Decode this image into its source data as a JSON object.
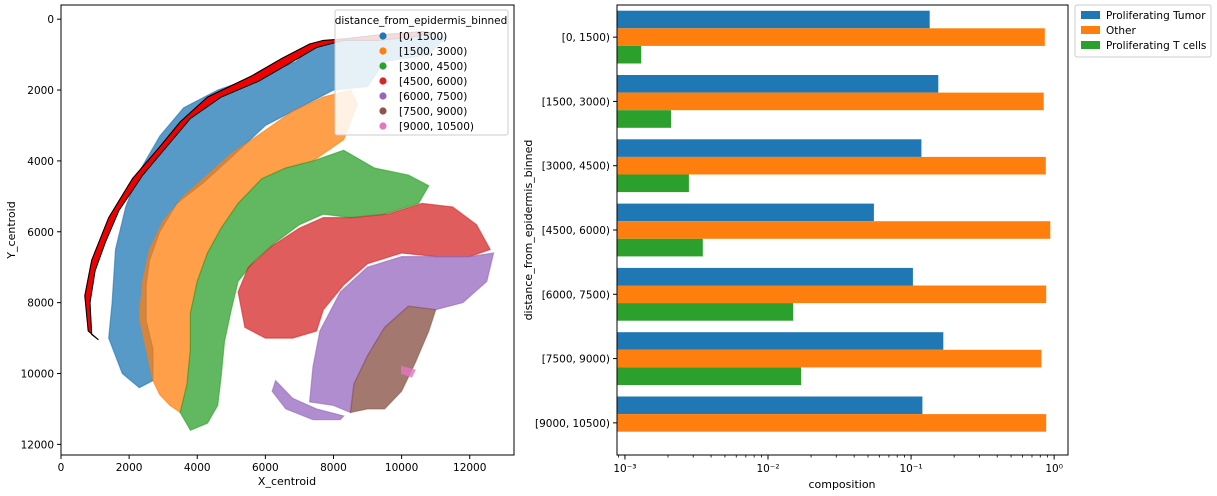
{
  "chart_data": [
    {
      "type": "scatter",
      "xlabel": "X_centroid",
      "ylabel": "Y_centroid",
      "xlim": [
        0,
        13300
      ],
      "ylim": [
        12300,
        -400
      ],
      "y_inverted": true,
      "x_ticks": [
        0,
        2000,
        4000,
        6000,
        8000,
        10000,
        12000
      ],
      "y_ticks": [
        0,
        2000,
        4000,
        6000,
        8000,
        10000,
        12000
      ],
      "legend": {
        "title": "distance_from_epidermis_binned",
        "placement": "top-right",
        "entries": [
          {
            "label": "[0, 1500)",
            "color": "#1f77b4"
          },
          {
            "label": "[1500, 3000)",
            "color": "#ff7f0e"
          },
          {
            "label": "[3000, 4500)",
            "color": "#2ca02c"
          },
          {
            "label": "[4500, 6000)",
            "color": "#d62728"
          },
          {
            "label": "[6000, 7500)",
            "color": "#9467bd"
          },
          {
            "label": "[7500, 9000)",
            "color": "#8c564b"
          },
          {
            "label": "[9000, 10500)",
            "color": "#e377c2"
          }
        ]
      },
      "regions": [
        {
          "bin": "[0, 1500)",
          "color": "#1f77b4",
          "alpha": 0.75,
          "outline": [
            [
              1400,
              9000
            ],
            [
              1500,
              8000
            ],
            [
              1600,
              6500
            ],
            [
              1900,
              5300
            ],
            [
              2300,
              4300
            ],
            [
              2900,
              3300
            ],
            [
              3600,
              2500
            ],
            [
              4600,
              2000
            ],
            [
              5800,
              1600
            ],
            [
              6900,
              1200
            ],
            [
              7400,
              750
            ],
            [
              8300,
              550
            ],
            [
              9300,
              450
            ],
            [
              10300,
              500
            ],
            [
              11300,
              500
            ],
            [
              10800,
              1000
            ],
            [
              9500,
              1200
            ],
            [
              9000,
              1900
            ],
            [
              8000,
              2000
            ],
            [
              7000,
              2500
            ],
            [
              6000,
              3000
            ],
            [
              5000,
              3900
            ],
            [
              4200,
              4600
            ],
            [
              3400,
              5200
            ],
            [
              2900,
              6000
            ],
            [
              2600,
              6800
            ],
            [
              2500,
              7500
            ],
            [
              2500,
              8500
            ],
            [
              2700,
              9300
            ],
            [
              2700,
              10200
            ],
            [
              2300,
              10400
            ],
            [
              1800,
              10000
            ]
          ]
        },
        {
          "bin": "[1500, 3000)",
          "color": "#ff7f0e",
          "alpha": 0.75,
          "outline": [
            [
              2700,
              10200
            ],
            [
              2500,
              9300
            ],
            [
              2300,
              8400
            ],
            [
              2400,
              7400
            ],
            [
              2600,
              6500
            ],
            [
              3000,
              5700
            ],
            [
              3600,
              5000
            ],
            [
              4300,
              4400
            ],
            [
              5000,
              3800
            ],
            [
              5900,
              3200
            ],
            [
              6800,
              2600
            ],
            [
              7700,
              2200
            ],
            [
              8500,
              2000
            ],
            [
              8700,
              2400
            ],
            [
              8300,
              3400
            ],
            [
              7400,
              4000
            ],
            [
              6600,
              4200
            ],
            [
              5900,
              4500
            ],
            [
              5200,
              5200
            ],
            [
              4700,
              5900
            ],
            [
              4300,
              6600
            ],
            [
              4000,
              7400
            ],
            [
              3800,
              8300
            ],
            [
              3800,
              9300
            ],
            [
              3700,
              10300
            ],
            [
              3500,
              11100
            ],
            [
              3200,
              10900
            ],
            [
              2900,
              10600
            ]
          ]
        },
        {
          "bin": "[3000, 4500)",
          "color": "#2ca02c",
          "alpha": 0.75,
          "outline": [
            [
              3800,
              11600
            ],
            [
              3500,
              11100
            ],
            [
              3700,
              10300
            ],
            [
              3800,
              9300
            ],
            [
              3800,
              8300
            ],
            [
              4000,
              7400
            ],
            [
              4300,
              6600
            ],
            [
              4700,
              5900
            ],
            [
              5200,
              5200
            ],
            [
              5900,
              4500
            ],
            [
              6600,
              4200
            ],
            [
              7400,
              4000
            ],
            [
              8300,
              3700
            ],
            [
              9200,
              4200
            ],
            [
              10200,
              4400
            ],
            [
              10800,
              4700
            ],
            [
              10500,
              5200
            ],
            [
              9500,
              5500
            ],
            [
              8500,
              5600
            ],
            [
              7700,
              5500
            ],
            [
              7000,
              5800
            ],
            [
              6300,
              6300
            ],
            [
              5700,
              6800
            ],
            [
              5200,
              7400
            ],
            [
              5000,
              8200
            ],
            [
              4800,
              9100
            ],
            [
              4700,
              10100
            ],
            [
              4600,
              10900
            ],
            [
              4300,
              11400
            ]
          ]
        },
        {
          "bin": "[4500, 6000)",
          "color": "#d62728",
          "alpha": 0.75,
          "outline": [
            [
              5400,
              8700
            ],
            [
              5200,
              7700
            ],
            [
              5500,
              7000
            ],
            [
              6200,
              6400
            ],
            [
              7000,
              5900
            ],
            [
              7700,
              5600
            ],
            [
              8600,
              5600
            ],
            [
              9600,
              5500
            ],
            [
              10600,
              5200
            ],
            [
              11500,
              5300
            ],
            [
              12200,
              5800
            ],
            [
              12600,
              6500
            ],
            [
              12000,
              6700
            ],
            [
              11000,
              6700
            ],
            [
              10000,
              6600
            ],
            [
              9000,
              6900
            ],
            [
              8300,
              7500
            ],
            [
              7700,
              8200
            ],
            [
              7500,
              8800
            ],
            [
              6800,
              9000
            ],
            [
              6000,
              9000
            ]
          ]
        },
        {
          "bin": "[6000, 7500)",
          "color": "#9467bd",
          "alpha": 0.75,
          "outline": [
            [
              7300,
              10800
            ],
            [
              7400,
              9800
            ],
            [
              7600,
              8800
            ],
            [
              8200,
              7700
            ],
            [
              9000,
              7000
            ],
            [
              10000,
              6700
            ],
            [
              11000,
              6700
            ],
            [
              12000,
              6700
            ],
            [
              12700,
              6600
            ],
            [
              12500,
              7400
            ],
            [
              11800,
              8000
            ],
            [
              11000,
              8200
            ],
            [
              10200,
              8100
            ],
            [
              9500,
              8700
            ],
            [
              9000,
              9500
            ],
            [
              8600,
              10300
            ],
            [
              8500,
              11100
            ],
            [
              8000,
              10900
            ]
          ]
        },
        {
          "bin": "[6000, 7500)",
          "color": "#9467bd",
          "alpha": 0.75,
          "outline": [
            [
              6300,
              10200
            ],
            [
              6800,
              10700
            ],
            [
              7500,
              11000
            ],
            [
              8300,
              11200
            ],
            [
              8200,
              11300
            ],
            [
              7400,
              11300
            ],
            [
              6600,
              11000
            ],
            [
              6200,
              10500
            ]
          ]
        },
        {
          "bin": "[7500, 9000)",
          "color": "#8c564b",
          "alpha": 0.8,
          "outline": [
            [
              8500,
              11100
            ],
            [
              8600,
              10300
            ],
            [
              9000,
              9500
            ],
            [
              9500,
              8700
            ],
            [
              10200,
              8100
            ],
            [
              11000,
              8200
            ],
            [
              10800,
              8800
            ],
            [
              10400,
              9700
            ],
            [
              10000,
              10500
            ],
            [
              9500,
              11000
            ],
            [
              9000,
              11000
            ]
          ]
        },
        {
          "bin": "[9000, 10500)",
          "color": "#e377c2",
          "alpha": 0.8,
          "outline": [
            [
              10000,
              9800
            ],
            [
              10400,
              9900
            ],
            [
              10300,
              10100
            ],
            [
              10000,
              10000
            ]
          ]
        }
      ],
      "epidermis_outline": [
        [
          1100,
          9050
        ],
        [
          800,
          8800
        ],
        [
          700,
          7800
        ],
        [
          900,
          6800
        ],
        [
          1400,
          5600
        ],
        [
          2100,
          4500
        ],
        [
          2900,
          3600
        ],
        [
          3500,
          2900
        ],
        [
          4300,
          2200
        ],
        [
          5600,
          1600
        ],
        [
          6500,
          1100
        ],
        [
          7300,
          700
        ],
        [
          7700,
          600
        ],
        [
          8400,
          550
        ],
        [
          9300,
          450
        ],
        [
          10000,
          400
        ],
        [
          10600,
          350
        ],
        [
          11000,
          400
        ],
        [
          10300,
          500
        ],
        [
          9300,
          600
        ],
        [
          8300,
          600
        ],
        [
          7500,
          800
        ],
        [
          6700,
          1250
        ],
        [
          5800,
          1750
        ],
        [
          4700,
          2200
        ],
        [
          3800,
          2800
        ],
        [
          3100,
          3600
        ],
        [
          2400,
          4400
        ],
        [
          1700,
          5400
        ],
        [
          1300,
          6300
        ],
        [
          1000,
          7100
        ],
        [
          850,
          8000
        ],
        [
          900,
          8900
        ]
      ]
    },
    {
      "type": "bar",
      "orientation": "horizontal",
      "xlabel": "composition",
      "ylabel": "distance_from_epidermis_binned",
      "xscale": "log",
      "xlim": [
        0.00088,
        1.25
      ],
      "x_ticks": [
        {
          "value": 0.001,
          "label": "10⁻³"
        },
        {
          "value": 0.01,
          "label": "10⁻²"
        },
        {
          "value": 0.1,
          "label": "10⁻¹"
        },
        {
          "value": 1,
          "label": "10⁰"
        }
      ],
      "categories": [
        "[0, 1500)",
        "[1500, 3000)",
        "[3000, 4500)",
        "[4500, 6000)",
        "[6000, 7500)",
        "[7500, 9000)",
        "[9000, 10500)"
      ],
      "legend": {
        "placement": "outside-top-right"
      },
      "series": [
        {
          "name": "Proliferating Tumor",
          "color": "#1f77b4",
          "values": [
            0.135,
            0.155,
            0.118,
            0.055,
            0.103,
            0.168,
            0.12
          ]
        },
        {
          "name": "Other",
          "color": "#ff7f0e",
          "values": [
            0.86,
            0.845,
            0.875,
            0.94,
            0.88,
            0.815,
            0.88
          ]
        },
        {
          "name": "Proliferating T cells",
          "color": "#2ca02c",
          "values": [
            0.0013,
            0.0021,
            0.0028,
            0.0035,
            0.015,
            0.017,
            0
          ]
        }
      ]
    }
  ]
}
